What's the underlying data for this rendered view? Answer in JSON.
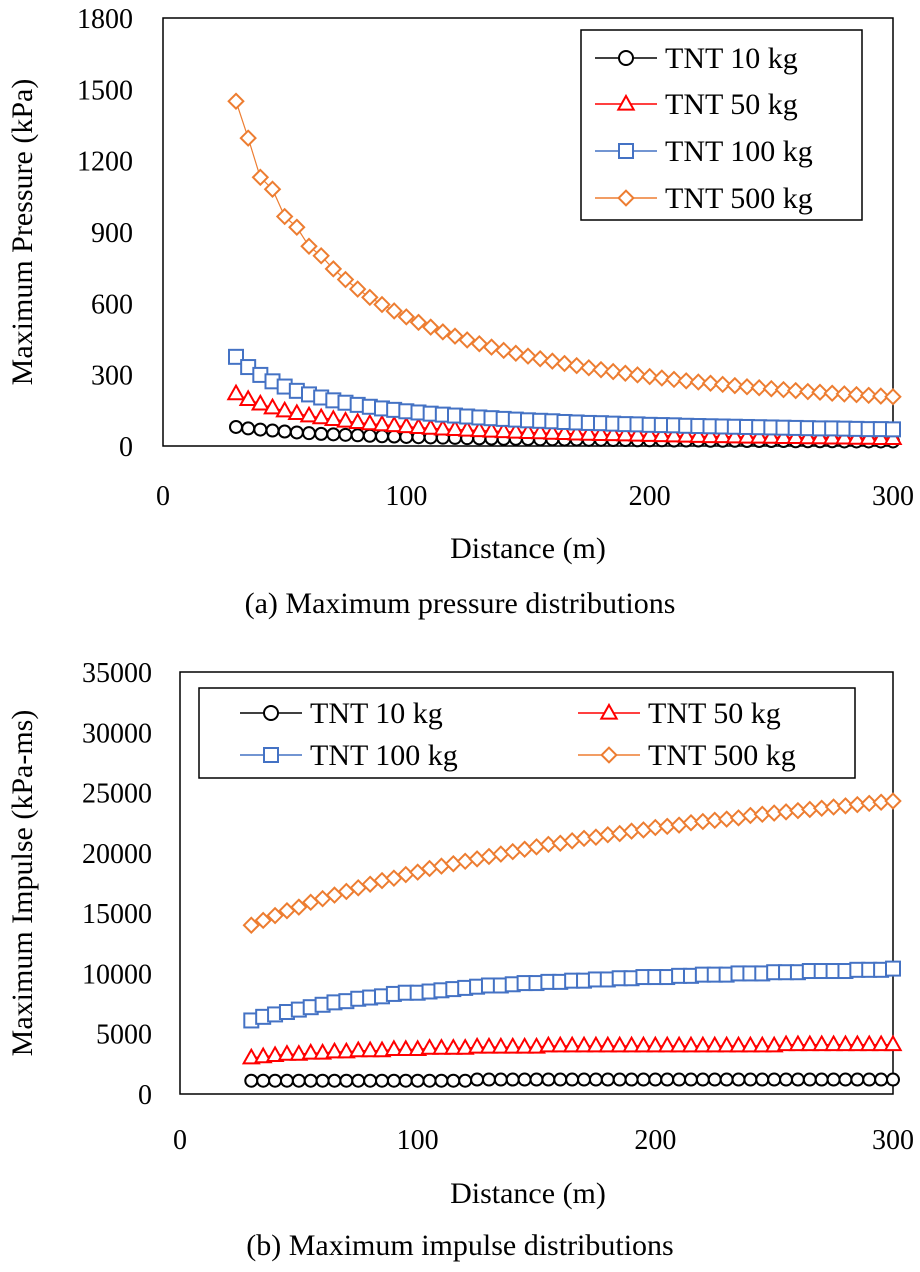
{
  "chart_data": [
    {
      "type": "line",
      "caption": "(a) Maximum pressure distributions",
      "xlabel": "Distance (m)",
      "ylabel": "Maximum Pressure (kPa)",
      "xlim": [
        0,
        300
      ],
      "ylim": [
        0,
        1800
      ],
      "xticks": [
        "0",
        "100",
        "200",
        "300"
      ],
      "yticks": [
        "0",
        "300",
        "600",
        "900",
        "1200",
        "1500",
        "1800"
      ],
      "legend_position": "top-right",
      "legend_columns": 1,
      "series": [
        {
          "name": "TNT 10 kg",
          "marker": "circle",
          "color": "#000000",
          "x": [
            30,
            35,
            40,
            45,
            50,
            55,
            60,
            65,
            70,
            75,
            80,
            85,
            90,
            95,
            100,
            105,
            110,
            115,
            120,
            125,
            130,
            135,
            140,
            145,
            150,
            155,
            160,
            165,
            170,
            175,
            180,
            185,
            190,
            195,
            200,
            205,
            210,
            215,
            220,
            225,
            230,
            235,
            240,
            245,
            250,
            255,
            260,
            265,
            270,
            275,
            280,
            285,
            290,
            295,
            300
          ],
          "y": [
            80,
            74,
            69,
            65,
            61,
            57,
            54,
            51,
            49,
            47,
            45,
            43,
            41,
            40,
            38,
            37,
            36,
            35,
            34,
            33,
            32,
            31,
            30,
            30,
            29,
            28,
            28,
            27,
            27,
            26,
            26,
            25,
            25,
            24,
            24,
            24,
            23,
            23,
            23,
            22,
            22,
            22,
            21,
            21,
            21,
            21,
            20,
            20,
            20,
            20,
            19,
            19,
            19,
            19,
            19
          ]
        },
        {
          "name": "TNT 50 kg",
          "marker": "triangle",
          "color": "#ff0000",
          "x": [
            30,
            35,
            40,
            45,
            50,
            55,
            60,
            65,
            70,
            75,
            80,
            85,
            90,
            95,
            100,
            105,
            110,
            115,
            120,
            125,
            130,
            135,
            140,
            145,
            150,
            155,
            160,
            165,
            170,
            175,
            180,
            185,
            190,
            195,
            200,
            205,
            210,
            215,
            220,
            225,
            230,
            235,
            240,
            245,
            250,
            255,
            260,
            265,
            270,
            275,
            280,
            285,
            290,
            295,
            300
          ],
          "y": [
            220,
            196,
            177,
            161,
            148,
            137,
            127,
            119,
            112,
            105,
            99,
            94,
            90,
            86,
            82,
            78,
            75,
            72,
            70,
            67,
            65,
            63,
            61,
            59,
            57,
            56,
            54,
            53,
            51,
            50,
            49,
            48,
            47,
            46,
            45,
            44,
            43,
            42,
            41,
            40,
            40,
            39,
            38,
            38,
            37,
            36,
            36,
            35,
            35,
            34,
            34,
            33,
            33,
            32,
            32
          ]
        },
        {
          "name": "TNT 100 kg",
          "marker": "square",
          "color": "#4472c4",
          "x": [
            30,
            35,
            40,
            45,
            50,
            55,
            60,
            65,
            70,
            75,
            80,
            85,
            90,
            95,
            100,
            105,
            110,
            115,
            120,
            125,
            130,
            135,
            140,
            145,
            150,
            155,
            160,
            165,
            170,
            175,
            180,
            185,
            190,
            195,
            200,
            205,
            210,
            215,
            220,
            225,
            230,
            235,
            240,
            245,
            250,
            255,
            260,
            265,
            270,
            275,
            280,
            285,
            290,
            295,
            300
          ],
          "y": [
            375,
            332,
            299,
            272,
            250,
            232,
            217,
            204,
            192,
            182,
            173,
            165,
            158,
            152,
            146,
            141,
            136,
            132,
            128,
            124,
            120,
            117,
            114,
            111,
            108,
            106,
            104,
            101,
            99,
            97,
            96,
            94,
            92,
            91,
            89,
            88,
            87,
            85,
            84,
            83,
            82,
            81,
            80,
            79,
            78,
            77,
            76,
            75,
            74,
            74,
            73,
            72,
            71,
            71,
            70
          ]
        },
        {
          "name": "TNT 500 kg",
          "marker": "diamond",
          "color": "#ed7d31",
          "x": [
            30,
            35,
            40,
            45,
            50,
            55,
            60,
            65,
            70,
            75,
            80,
            85,
            90,
            95,
            100,
            105,
            110,
            115,
            120,
            125,
            130,
            135,
            140,
            145,
            150,
            155,
            160,
            165,
            170,
            175,
            180,
            185,
            190,
            195,
            200,
            205,
            210,
            215,
            220,
            225,
            230,
            235,
            240,
            245,
            250,
            255,
            260,
            265,
            270,
            275,
            280,
            285,
            290,
            295,
            300
          ],
          "y": [
            1450,
            1295,
            1130,
            1080,
            965,
            920,
            840,
            800,
            745,
            700,
            660,
            625,
            595,
            568,
            543,
            520,
            500,
            480,
            462,
            446,
            430,
            416,
            402,
            390,
            378,
            367,
            357,
            347,
            338,
            329,
            321,
            313,
            306,
            299,
            292,
            286,
            280,
            274,
            269,
            264,
            259,
            254,
            249,
            245,
            241,
            237,
            233,
            229,
            226,
            222,
            219,
            216,
            213,
            210,
            207
          ]
        }
      ]
    },
    {
      "type": "line",
      "caption": "(b) Maximum impulse distributions",
      "xlabel": "Distance (m)",
      "ylabel": "Maximum Impulse (kPa-ms)",
      "xlim": [
        0,
        300
      ],
      "ylim": [
        0,
        35000
      ],
      "xticks": [
        "0",
        "100",
        "200",
        "300"
      ],
      "yticks": [
        "0",
        "5000",
        "10000",
        "15000",
        "20000",
        "25000",
        "30000",
        "35000"
      ],
      "legend_position": "top",
      "legend_columns": 2,
      "series": [
        {
          "name": "TNT 10 kg",
          "marker": "circle",
          "color": "#000000",
          "x": [
            30,
            35,
            40,
            45,
            50,
            55,
            60,
            65,
            70,
            75,
            80,
            85,
            90,
            95,
            100,
            105,
            110,
            115,
            120,
            125,
            130,
            135,
            140,
            145,
            150,
            155,
            160,
            165,
            170,
            175,
            180,
            185,
            190,
            195,
            200,
            205,
            210,
            215,
            220,
            225,
            230,
            235,
            240,
            245,
            250,
            255,
            260,
            265,
            270,
            275,
            280,
            285,
            290,
            295,
            300
          ],
          "y": [
            1100,
            1100,
            1100,
            1100,
            1100,
            1100,
            1100,
            1100,
            1100,
            1100,
            1100,
            1100,
            1100,
            1100,
            1100,
            1100,
            1100,
            1100,
            1100,
            1200,
            1200,
            1200,
            1200,
            1200,
            1200,
            1200,
            1200,
            1200,
            1200,
            1200,
            1200,
            1200,
            1200,
            1200,
            1200,
            1200,
            1200,
            1200,
            1200,
            1200,
            1200,
            1200,
            1200,
            1200,
            1200,
            1200,
            1200,
            1200,
            1200,
            1200,
            1200,
            1200,
            1200,
            1200,
            1200
          ]
        },
        {
          "name": "TNT 50 kg",
          "marker": "triangle",
          "color": "#ff0000",
          "x": [
            30,
            35,
            40,
            45,
            50,
            55,
            60,
            65,
            70,
            75,
            80,
            85,
            90,
            95,
            100,
            105,
            110,
            115,
            120,
            125,
            130,
            135,
            140,
            145,
            150,
            155,
            160,
            165,
            170,
            175,
            180,
            185,
            190,
            195,
            200,
            205,
            210,
            215,
            220,
            225,
            230,
            235,
            240,
            245,
            250,
            255,
            260,
            265,
            270,
            275,
            280,
            285,
            290,
            295,
            300
          ],
          "y": [
            3000,
            3100,
            3200,
            3300,
            3300,
            3400,
            3400,
            3500,
            3500,
            3600,
            3600,
            3600,
            3700,
            3700,
            3700,
            3800,
            3800,
            3800,
            3800,
            3900,
            3900,
            3900,
            3900,
            3900,
            3900,
            4000,
            4000,
            4000,
            4000,
            4000,
            4000,
            4000,
            4000,
            4000,
            4000,
            4000,
            4000,
            4000,
            4000,
            4000,
            4000,
            4000,
            4000,
            4000,
            4000,
            4100,
            4100,
            4100,
            4100,
            4100,
            4100,
            4100,
            4100,
            4100,
            4100
          ]
        },
        {
          "name": "TNT 100 kg",
          "marker": "square",
          "color": "#4472c4",
          "x": [
            30,
            35,
            40,
            45,
            50,
            55,
            60,
            65,
            70,
            75,
            80,
            85,
            90,
            95,
            100,
            105,
            110,
            115,
            120,
            125,
            130,
            135,
            140,
            145,
            150,
            155,
            160,
            165,
            170,
            175,
            180,
            185,
            190,
            195,
            200,
            205,
            210,
            215,
            220,
            225,
            230,
            235,
            240,
            245,
            250,
            255,
            260,
            265,
            270,
            275,
            280,
            285,
            290,
            295,
            300
          ],
          "y": [
            6100,
            6400,
            6600,
            6800,
            7000,
            7200,
            7400,
            7600,
            7700,
            7900,
            8000,
            8100,
            8300,
            8400,
            8400,
            8500,
            8600,
            8700,
            8800,
            8900,
            9000,
            9000,
            9100,
            9200,
            9200,
            9300,
            9300,
            9400,
            9400,
            9500,
            9500,
            9600,
            9600,
            9700,
            9700,
            9700,
            9800,
            9800,
            9900,
            9900,
            9900,
            10000,
            10000,
            10000,
            10100,
            10100,
            10100,
            10200,
            10200,
            10200,
            10200,
            10300,
            10300,
            10300,
            10400
          ]
        },
        {
          "name": "TNT 500 kg",
          "marker": "diamond",
          "color": "#ed7d31",
          "x": [
            30,
            35,
            40,
            45,
            50,
            55,
            60,
            65,
            70,
            75,
            80,
            85,
            90,
            95,
            100,
            105,
            110,
            115,
            120,
            125,
            130,
            135,
            140,
            145,
            150,
            155,
            160,
            165,
            170,
            175,
            180,
            185,
            190,
            195,
            200,
            205,
            210,
            215,
            220,
            225,
            230,
            235,
            240,
            245,
            250,
            255,
            260,
            265,
            270,
            275,
            280,
            285,
            290,
            295,
            300
          ],
          "y": [
            14000,
            14400,
            14800,
            15200,
            15500,
            15900,
            16200,
            16500,
            16800,
            17100,
            17400,
            17700,
            17900,
            18200,
            18400,
            18700,
            18900,
            19100,
            19300,
            19500,
            19700,
            19900,
            20100,
            20300,
            20500,
            20700,
            20800,
            21000,
            21200,
            21300,
            21500,
            21600,
            21800,
            21900,
            22100,
            22200,
            22300,
            22500,
            22600,
            22700,
            22800,
            22900,
            23100,
            23200,
            23300,
            23400,
            23500,
            23600,
            23700,
            23800,
            23900,
            24000,
            24100,
            24200,
            24300
          ]
        }
      ]
    }
  ]
}
